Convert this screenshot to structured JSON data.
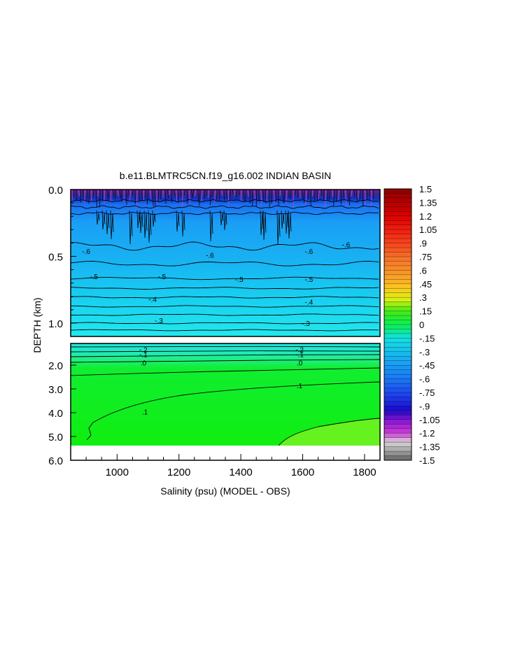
{
  "chart_data": {
    "type": "heatmap",
    "title": "b.e11.BLMTRC5CN.f19_g16.002 INDIAN BASIN",
    "xlabel": "Salinity (psu) (MODEL - OBS)",
    "ylabel": "DEPTH (km)",
    "xlim": [
      850,
      1850
    ],
    "x_ticks": [
      {
        "value": 1000,
        "label": "1000"
      },
      {
        "value": 1200,
        "label": "1200"
      },
      {
        "value": 1400,
        "label": "1400"
      },
      {
        "value": 1600,
        "label": "1600"
      },
      {
        "value": 1800,
        "label": "1800"
      }
    ],
    "upper_panel": {
      "ylim": [
        0,
        1.1
      ],
      "y_ticks": [
        {
          "value": 0.0,
          "label": "0.0"
        },
        {
          "value": 0.5,
          "label": "0.5"
        },
        {
          "value": 1.0,
          "label": "1.0"
        }
      ]
    },
    "lower_panel": {
      "ylim": [
        1.1,
        6.0
      ],
      "y_ticks": [
        {
          "value": 2.0,
          "label": "2.0"
        },
        {
          "value": 3.0,
          "label": "3.0"
        },
        {
          "value": 4.0,
          "label": "4.0"
        },
        {
          "value": 5.0,
          "label": "5.0"
        },
        {
          "value": 6.0,
          "label": "6.0"
        }
      ]
    },
    "colorbar": {
      "min": -1.5,
      "max": 1.5,
      "labels": [
        "1.5",
        "1.35",
        "1.2",
        "1.05",
        ".9",
        ".75",
        ".6",
        ".45",
        ".3",
        ".15",
        "0",
        "-.15",
        "-.3",
        "-.45",
        "-.6",
        "-.75",
        "-.9",
        "-1.05",
        "-1.2",
        "-1.35",
        "-1.5"
      ]
    },
    "contour_labels": [
      {
        "x": 925,
        "depth": 0.65,
        "text": "-.5"
      },
      {
        "x": 1145,
        "depth": 0.65,
        "text": "-.5"
      },
      {
        "x": 1395,
        "depth": 0.67,
        "text": "-.5"
      },
      {
        "x": 1620,
        "depth": 0.67,
        "text": "-.5"
      },
      {
        "x": 1115,
        "depth": 0.82,
        "text": "-.4"
      },
      {
        "x": 1620,
        "depth": 0.84,
        "text": "-.4"
      },
      {
        "x": 1135,
        "depth": 0.98,
        "text": "-.3"
      },
      {
        "x": 1610,
        "depth": 1.0,
        "text": "-.3"
      },
      {
        "x": 900,
        "depth": 0.46,
        "text": "-.6"
      },
      {
        "x": 1300,
        "depth": 0.49,
        "text": "-.6"
      },
      {
        "x": 1620,
        "depth": 0.46,
        "text": "-.6"
      },
      {
        "x": 1740,
        "depth": 0.41,
        "text": "-.6"
      },
      {
        "x": 1085,
        "depth": 1.35,
        "text": "-.2"
      },
      {
        "x": 1590,
        "depth": 1.35,
        "text": "-.2"
      },
      {
        "x": 1085,
        "depth": 1.55,
        "text": "-.1"
      },
      {
        "x": 1590,
        "depth": 1.55,
        "text": "-.1"
      },
      {
        "x": 1085,
        "depth": 1.9,
        "text": ".0"
      },
      {
        "x": 1590,
        "depth": 1.9,
        "text": ".0"
      },
      {
        "x": 1590,
        "depth": 2.85,
        "text": ".1"
      },
      {
        "x": 1090,
        "depth": 3.95,
        "text": ".1"
      }
    ]
  }
}
